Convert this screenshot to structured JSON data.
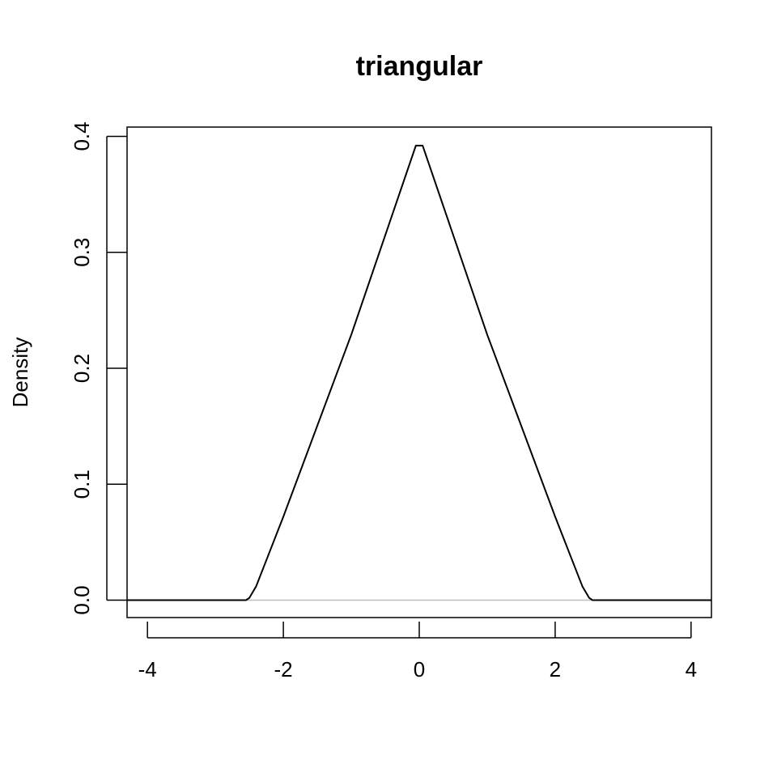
{
  "chart_data": {
    "type": "line",
    "title": "triangular",
    "xlabel": "",
    "ylabel": "Density",
    "xlim": [
      -4.3,
      4.3
    ],
    "ylim": [
      -0.015,
      0.408
    ],
    "x_ticks": [
      -4,
      -2,
      0,
      2,
      4
    ],
    "y_ticks": [
      0.0,
      0.1,
      0.2,
      0.3,
      0.4
    ],
    "x_tick_labels": [
      "-4",
      "-2",
      "0",
      "2",
      "4"
    ],
    "y_tick_labels": [
      "0.0",
      "0.1",
      "0.2",
      "0.3",
      "0.4"
    ],
    "grid": false,
    "legend": "none",
    "series": [
      {
        "x": [
          -4.3,
          -2.55,
          -2.5,
          -2.4,
          -2.0,
          -1.0,
          -0.05,
          0.05,
          1.0,
          2.0,
          2.4,
          2.5,
          2.55,
          4.3
        ],
        "y": [
          0.0,
          0.0,
          0.002,
          0.012,
          0.072,
          0.229,
          0.392,
          0.392,
          0.229,
          0.072,
          0.012,
          0.002,
          0.0,
          0.0
        ],
        "color": "#000000"
      }
    ],
    "baseline": {
      "y": 0.0,
      "color": "#bebebe"
    }
  }
}
